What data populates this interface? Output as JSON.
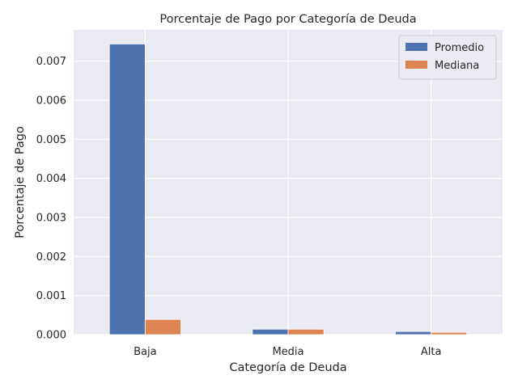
{
  "chart_data": {
    "type": "bar",
    "title": "Porcentaje de Pago por Categoría de Deuda",
    "xlabel": "Categoría de Deuda",
    "ylabel": "Porcentaje de Pago",
    "categories": [
      "Baja",
      "Media",
      "Alta"
    ],
    "series": [
      {
        "name": "Promedio",
        "color": "#4c72b0",
        "values": [
          0.00744,
          0.00014,
          8e-05
        ]
      },
      {
        "name": "Mediana",
        "color": "#dd8452",
        "values": [
          0.00039,
          0.00014,
          6e-05
        ]
      }
    ],
    "ylim": [
      0,
      0.0078
    ],
    "yticks": [
      0.0,
      0.001,
      0.002,
      0.003,
      0.004,
      0.005,
      0.006,
      0.007
    ],
    "ytick_labels": [
      "0.000",
      "0.001",
      "0.002",
      "0.003",
      "0.004",
      "0.005",
      "0.006",
      "0.007"
    ],
    "grid": true,
    "legend_position": "top-right",
    "background_color": "#eaeaf2",
    "grid_color": "#ffffff"
  }
}
